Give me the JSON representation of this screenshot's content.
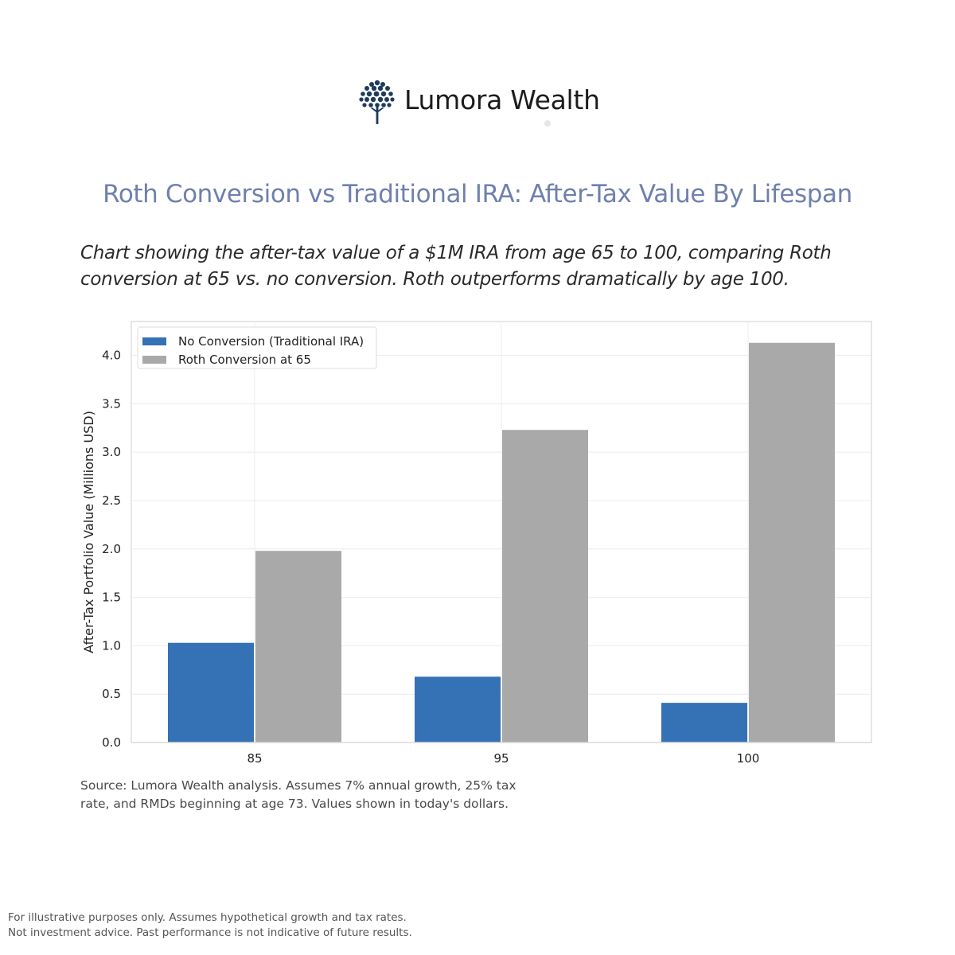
{
  "brand": {
    "name": "Lumora Wealth",
    "logo_icon": "tree-icon"
  },
  "header": {
    "title": "Roth Conversion vs Traditional IRA: After-Tax Value By Lifespan",
    "subtitle": "Chart showing the after-tax value of a $1M IRA from age 65 to 100, comparing Roth conversion at 65 vs. no conversion. Roth outperforms dramatically by age 100."
  },
  "chart_data": {
    "type": "bar",
    "categories": [
      "85",
      "95",
      "100"
    ],
    "series": [
      {
        "name": "No Conversion (Traditional IRA)",
        "values": [
          1.03,
          0.68,
          0.41
        ],
        "color": "#3571b5"
      },
      {
        "name": "Roth Conversion at 65",
        "values": [
          1.98,
          3.23,
          4.13
        ],
        "color": "#a9a9a9"
      }
    ],
    "xlabel": "",
    "ylabel": "After-Tax Portfolio Value (Millions USD)",
    "ylim": [
      0,
      4.35
    ],
    "yticks": [
      "0.0",
      "0.5",
      "1.0",
      "1.5",
      "2.0",
      "2.5",
      "3.0",
      "3.5",
      "4.0"
    ],
    "grid": true,
    "legend": "top-left"
  },
  "source_note": {
    "lines": [
      "Source: Lumora Wealth analysis. Assumes 7% annual growth, 25% tax",
      "rate, and RMDs beginning at age 73. Values shown in today's dollars."
    ]
  },
  "disclaimer": {
    "lines": [
      "For illustrative purposes only. Assumes hypothetical growth and tax rates.",
      "Not investment advice. Past performance is not indicative of future results."
    ]
  }
}
